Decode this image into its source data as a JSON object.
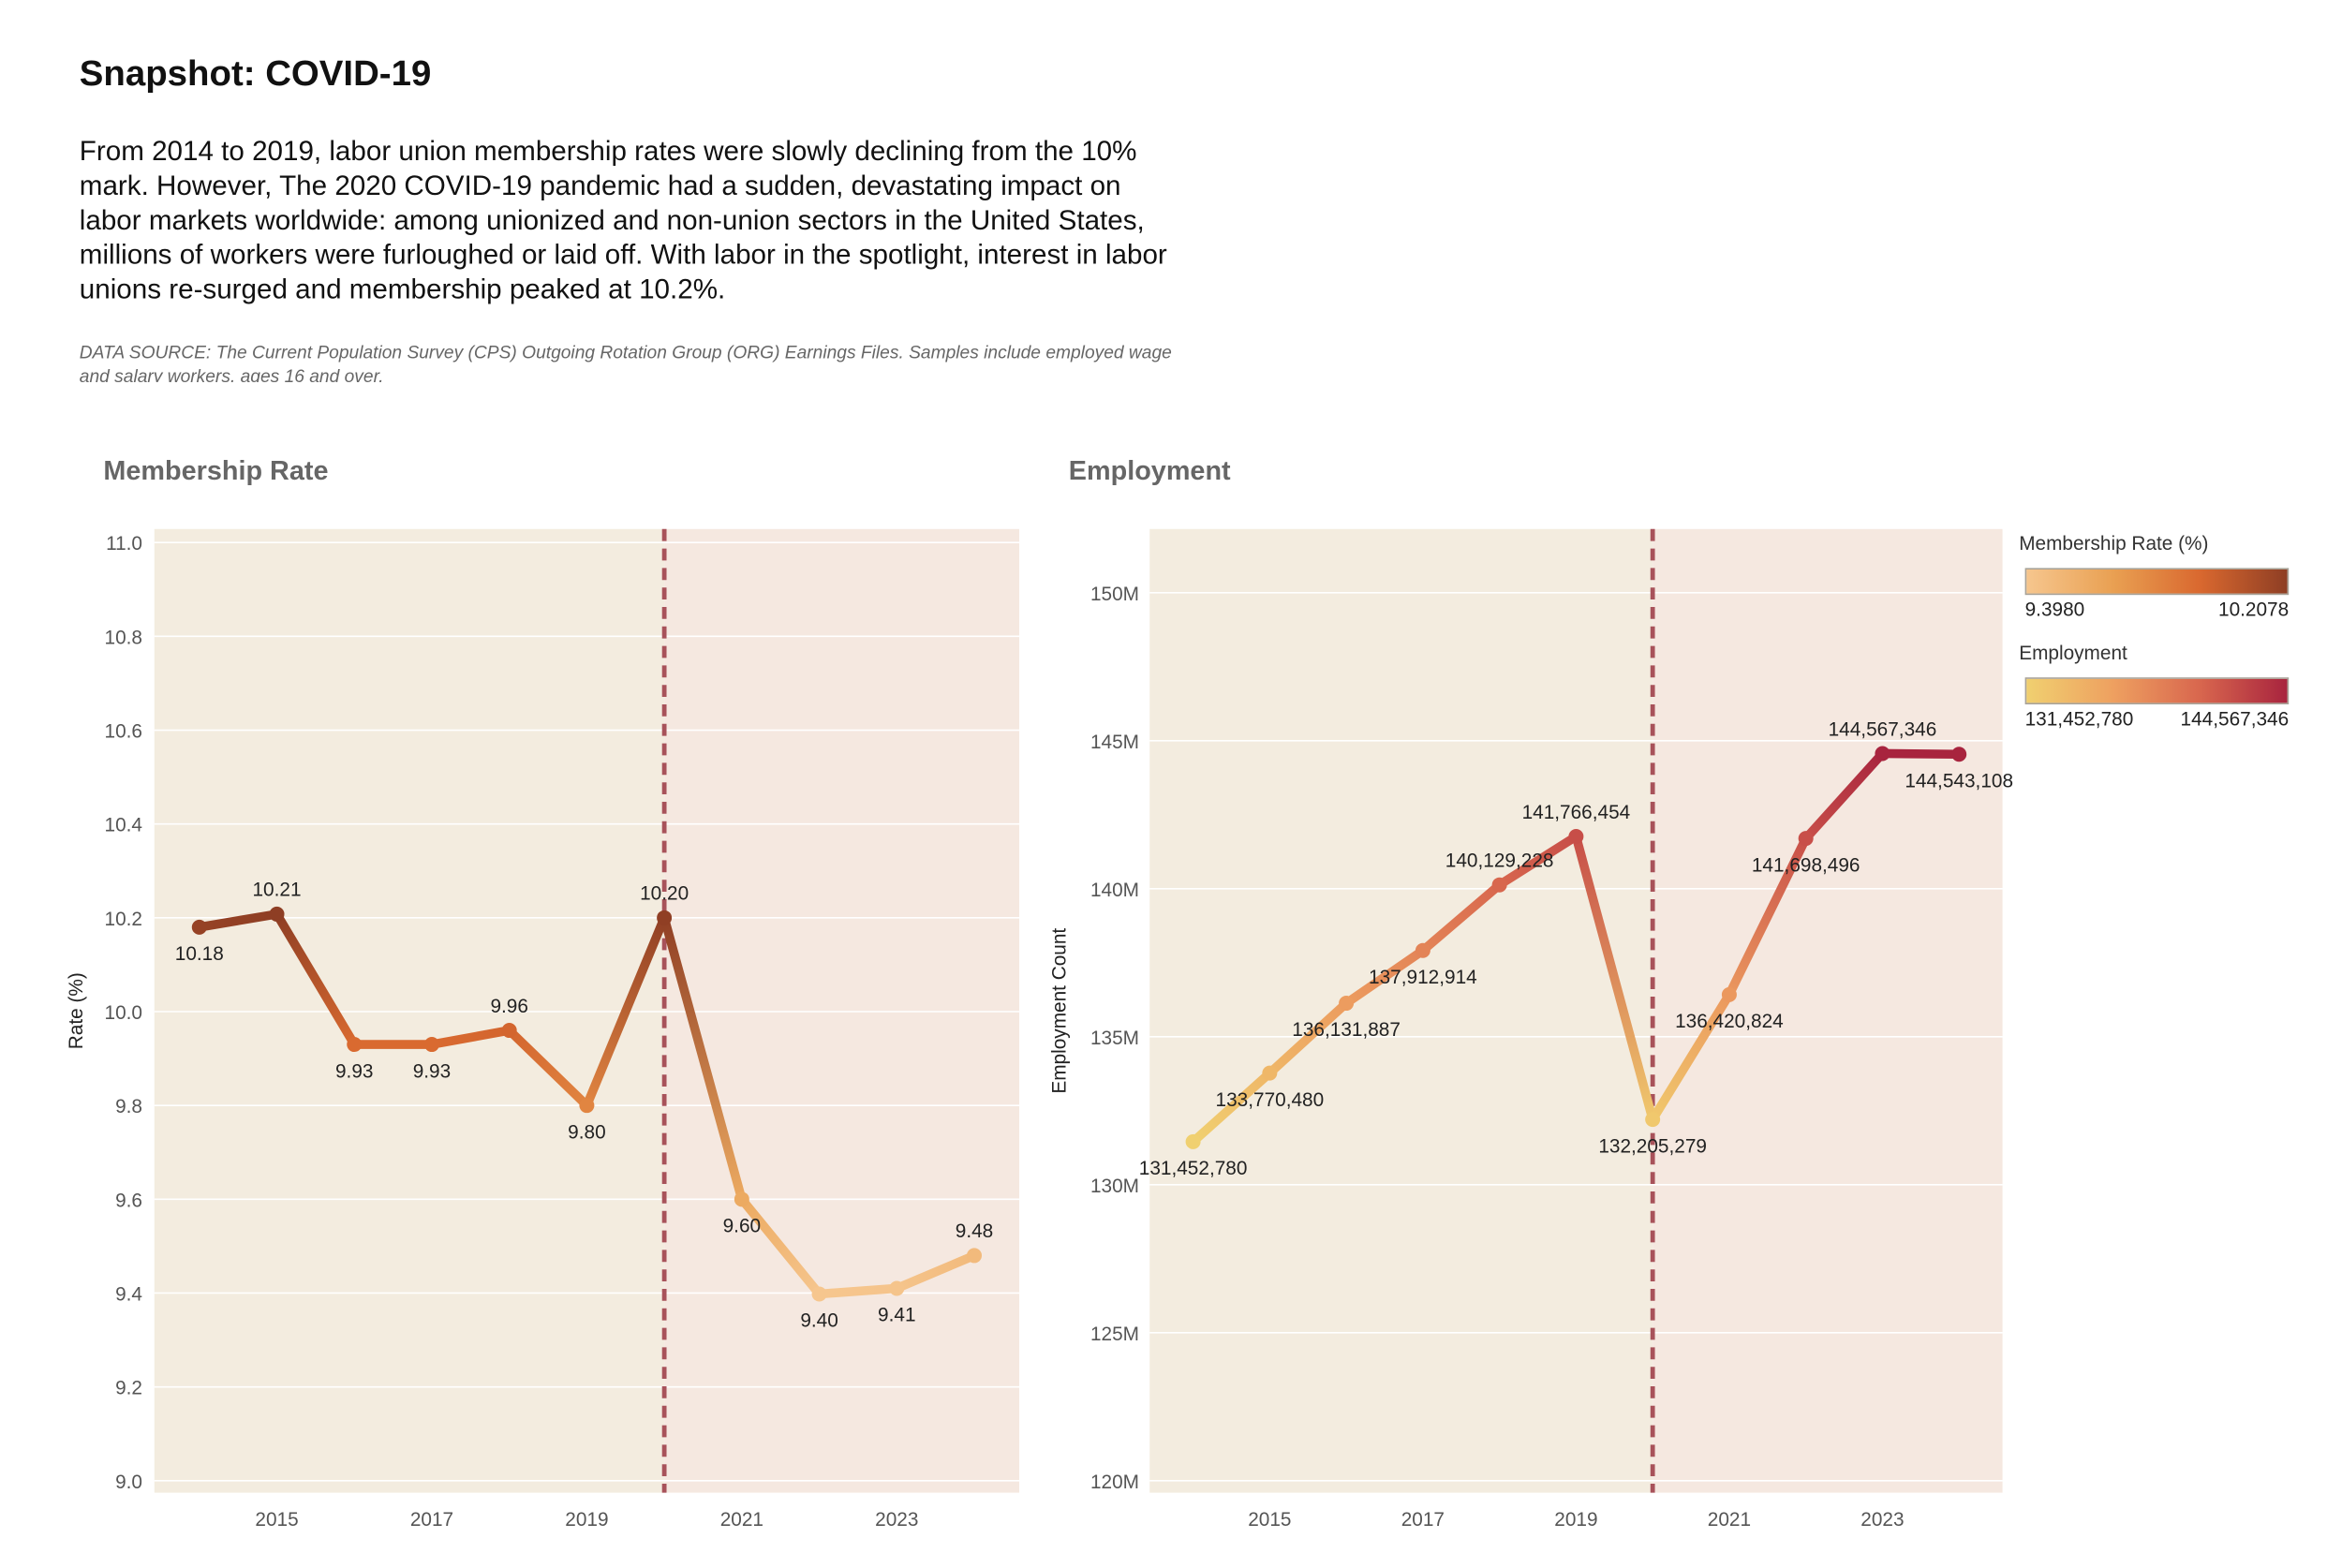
{
  "header": {
    "title": "Snapshot: COVID-19",
    "description": "From 2014 to 2019, labor union membership rates were slowly declining from the 10% mark. However, The 2020 COVID-19 pandemic had a sudden, devastating impact on labor markets worldwide: among unionized and non-union sectors in the United States, millions of workers were furloughed or laid off. With labor in the spotlight, interest in labor unions re-surged and membership peaked at 10.2%.",
    "source": "DATA SOURCE: The Current Population Survey (CPS) Outgoing Rotation Group (ORG) Earnings Files. Samples include employed wage and salary workers, ages 16 and over."
  },
  "legend": {
    "rate": {
      "title": "Membership Rate (%)",
      "min": "9.3980",
      "max": "10.2078",
      "colors": [
        "#f6c68e",
        "#e9a052",
        "#d9682f",
        "#8e3e24"
      ]
    },
    "employment": {
      "title": "Employment",
      "min": "131,452,780",
      "max": "144,567,346",
      "colors": [
        "#f0d070",
        "#eea060",
        "#d8664e",
        "#a8243e"
      ]
    }
  },
  "chart_data": [
    {
      "type": "line",
      "title": "Membership Rate",
      "xlabel": "",
      "ylabel": "Rate (%)",
      "x": [
        2014,
        2015,
        2016,
        2017,
        2018,
        2019,
        2020,
        2021,
        2022,
        2023,
        2024
      ],
      "values": [
        10.18,
        10.2078,
        9.93,
        9.93,
        9.96,
        9.8,
        10.2,
        9.6,
        9.398,
        9.41,
        9.48
      ],
      "labels": [
        "10.18",
        "10.21",
        "9.93",
        "9.93",
        "9.96",
        "9.80",
        "10.20",
        "9.60",
        "9.40",
        "9.41",
        "9.48"
      ],
      "label_pos": [
        "below",
        "above",
        "below",
        "below",
        "above",
        "below",
        "above",
        "below",
        "below",
        "below",
        "above"
      ],
      "ylim": [
        9.0,
        11.0
      ],
      "yticks": [
        "9.0",
        "9.2",
        "9.4",
        "9.6",
        "9.8",
        "10.0",
        "10.2",
        "10.4",
        "10.6",
        "10.8",
        "11.0"
      ],
      "xticks": [
        "2015",
        "2017",
        "2019",
        "2021",
        "2023"
      ],
      "grid": true,
      "reference_line_x": 2020,
      "colorscale": "rate"
    },
    {
      "type": "line",
      "title": "Employment",
      "xlabel": "",
      "ylabel": "Employment Count",
      "x": [
        2014,
        2015,
        2016,
        2017,
        2018,
        2019,
        2020,
        2021,
        2022,
        2023,
        2024
      ],
      "values": [
        131452780,
        133770480,
        136131887,
        137912914,
        140129228,
        141766454,
        132205279,
        136420824,
        141698496,
        144567346,
        144543108
      ],
      "labels": [
        "131,452,780",
        "133,770,480",
        "136,131,887",
        "137,912,914",
        "140,129,228",
        "141,766,454",
        "132,205,279",
        "136,420,824",
        "141,698,496",
        "144,567,346",
        "144,543,108"
      ],
      "label_pos": [
        "below",
        "below",
        "below",
        "below",
        "above",
        "above",
        "below",
        "below",
        "below",
        "above",
        "below"
      ],
      "ylim": [
        120000000,
        152000000
      ],
      "yticks": [
        "120M",
        "125M",
        "130M",
        "135M",
        "140M",
        "145M",
        "150M"
      ],
      "xticks": [
        "2015",
        "2017",
        "2019",
        "2021",
        "2023"
      ],
      "grid": true,
      "reference_line_x": 2020,
      "colorscale": "employment"
    }
  ],
  "colors": {
    "pre_covid_bg": "#f3ecdf",
    "post_covid_bg": "#f5e8e0",
    "reference_line": "#a8525a"
  }
}
